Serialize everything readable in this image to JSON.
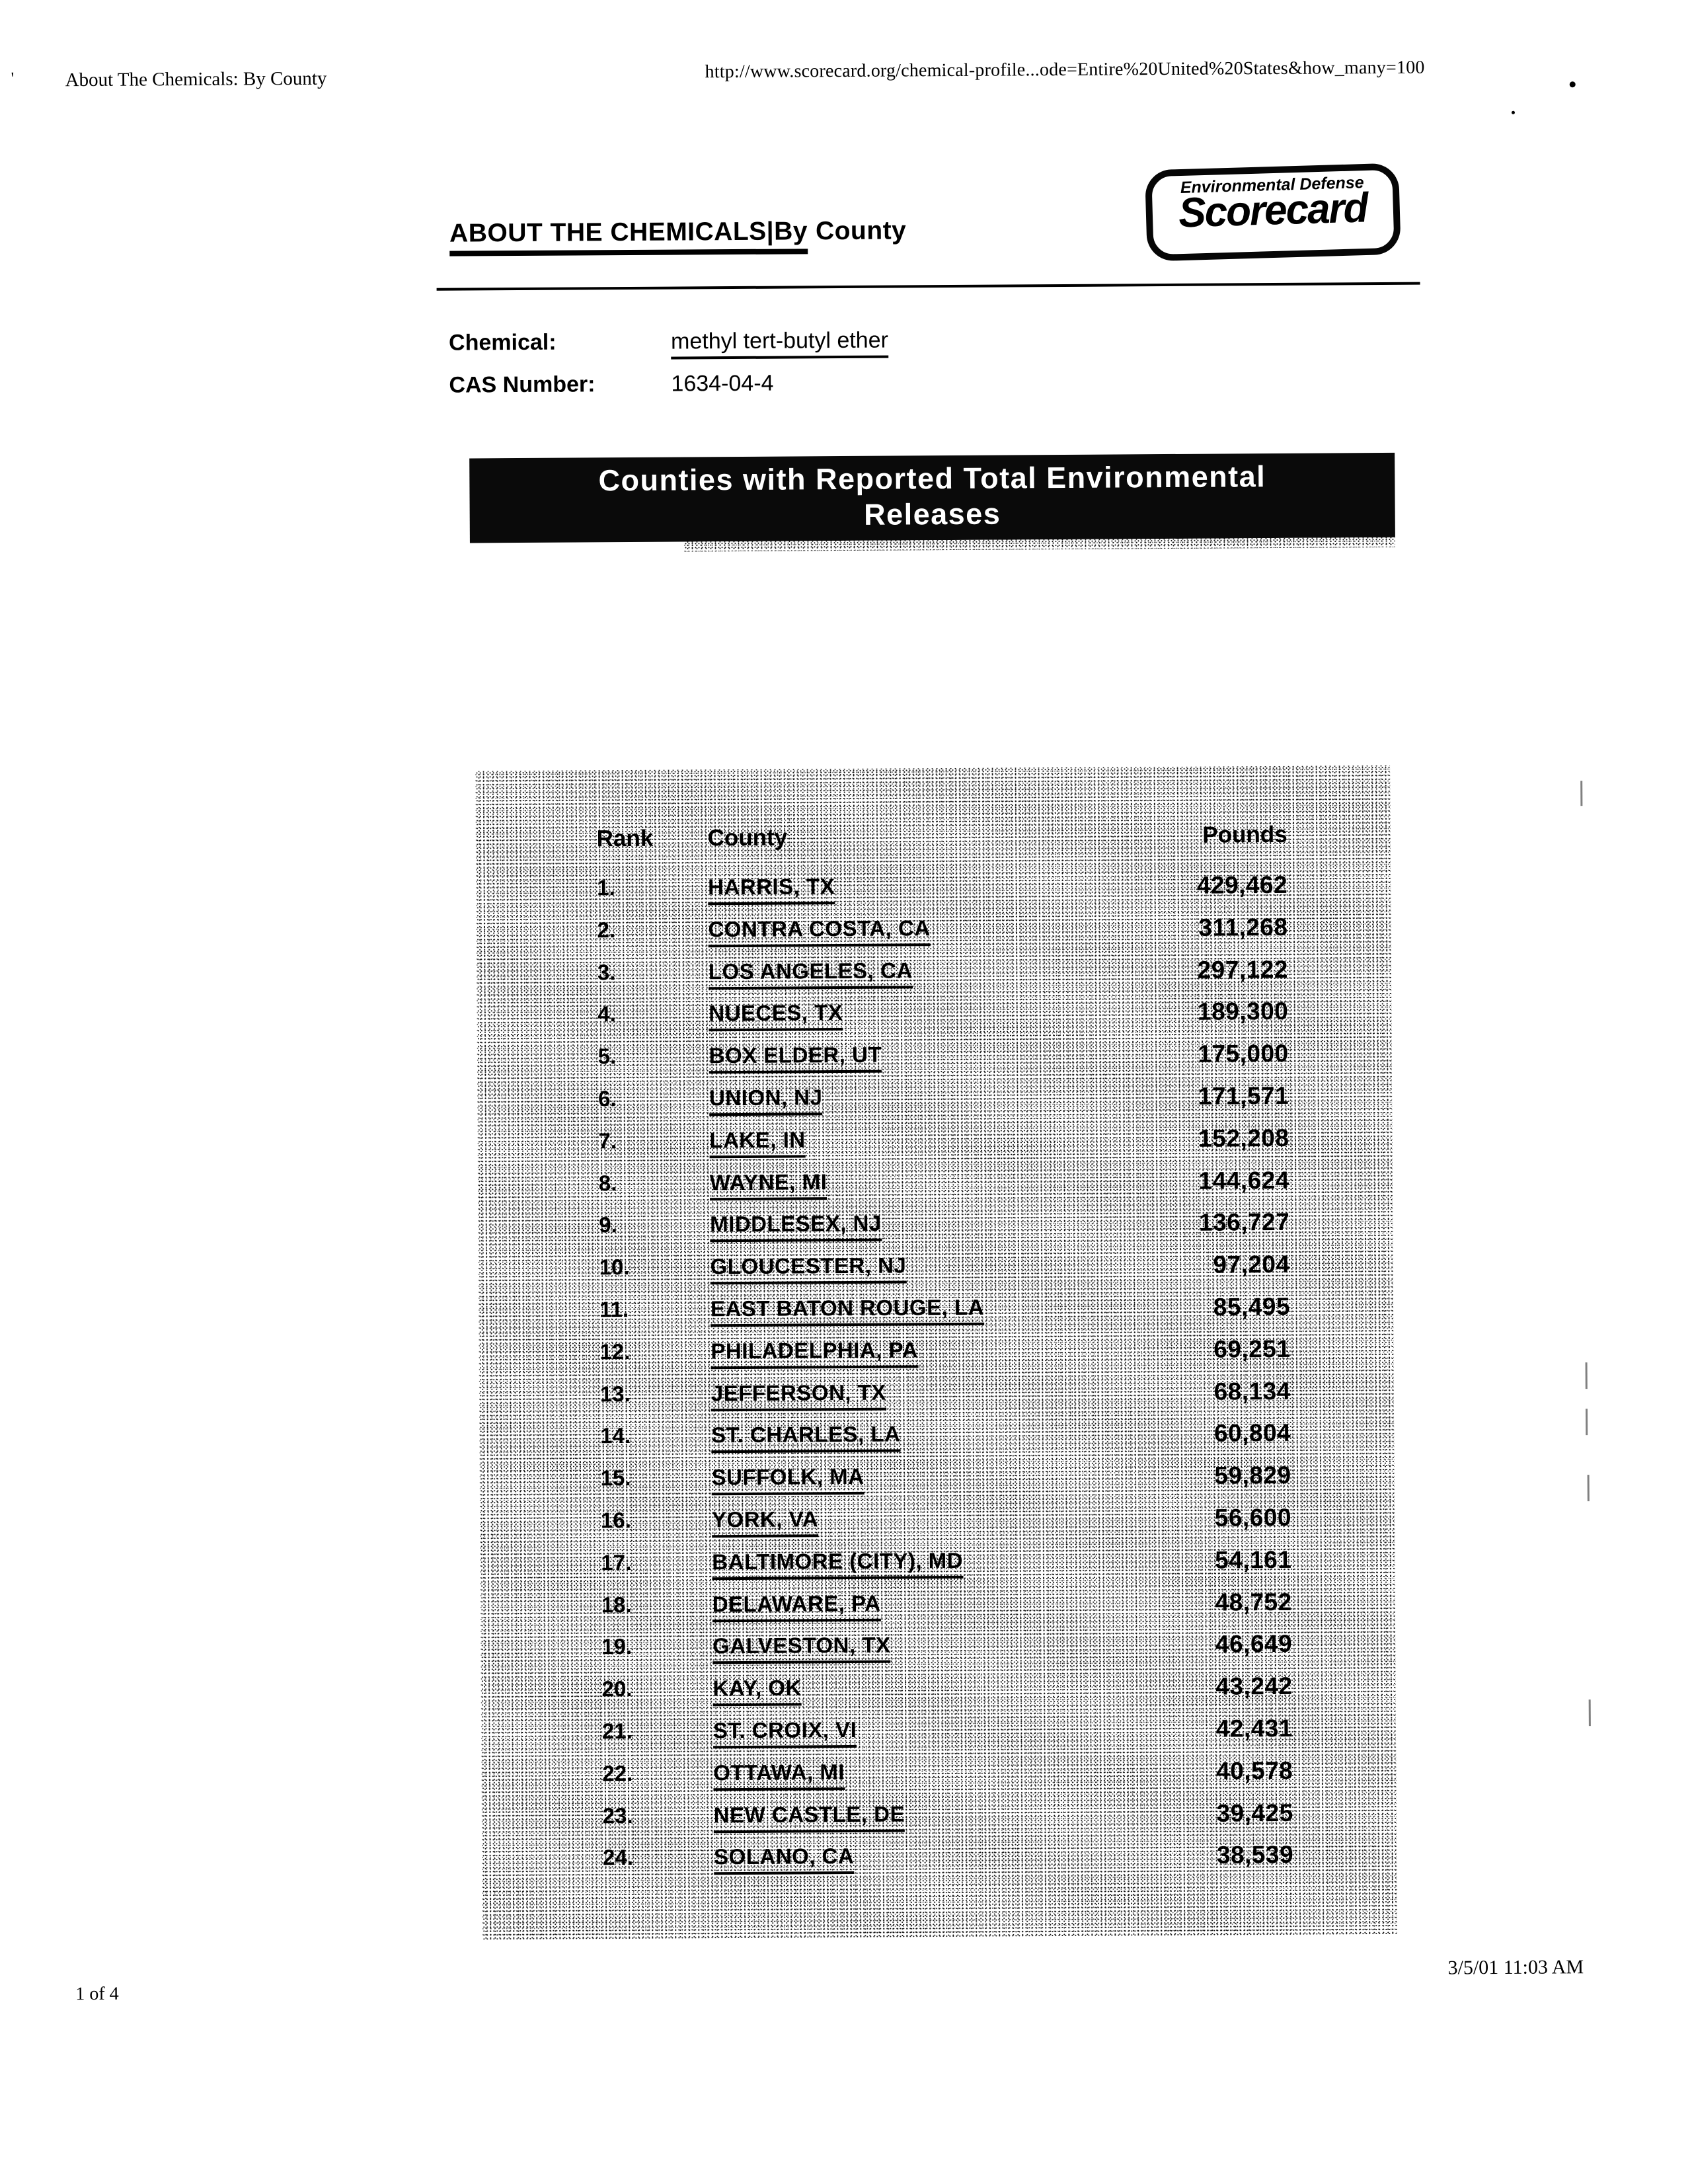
{
  "print_header": {
    "title": "About The Chemicals: By County",
    "url": "http://www.scorecard.org/chemical-profile...ode=Entire%20United%20States&how_many=100"
  },
  "logo": {
    "organization": "Environmental Defense",
    "brand": "Scorecard"
  },
  "page_title": {
    "link_text": "ABOUT THE CHEMICALS|By",
    "suffix": "County"
  },
  "fields": {
    "chemical_label": "Chemical:",
    "chemical_value": "methyl tert-butyl ether",
    "cas_label": "CAS Number:",
    "cas_value": "1634-04-4"
  },
  "banner": {
    "line1": "Counties with Reported Total Environmental",
    "line2": "Releases"
  },
  "table": {
    "headers": {
      "rank": "Rank",
      "county": "County",
      "pounds": "Pounds"
    },
    "rows": [
      {
        "rank": "1.",
        "county": "HARRIS, TX",
        "pounds": "429,462"
      },
      {
        "rank": "2.",
        "county": "CONTRA COSTA, CA",
        "pounds": "311,268"
      },
      {
        "rank": "3.",
        "county": "LOS ANGELES, CA",
        "pounds": "297,122"
      },
      {
        "rank": "4.",
        "county": "NUECES, TX",
        "pounds": "189,300"
      },
      {
        "rank": "5.",
        "county": "BOX ELDER, UT",
        "pounds": "175,000"
      },
      {
        "rank": "6.",
        "county": "UNION, NJ",
        "pounds": "171,571"
      },
      {
        "rank": "7.",
        "county": "LAKE, IN",
        "pounds": "152,208"
      },
      {
        "rank": "8.",
        "county": "WAYNE, MI",
        "pounds": "144,624"
      },
      {
        "rank": "9.",
        "county": "MIDDLESEX, NJ",
        "pounds": "136,727"
      },
      {
        "rank": "10.",
        "county": "GLOUCESTER, NJ",
        "pounds": "97,204"
      },
      {
        "rank": "11.",
        "county": "EAST BATON ROUGE, LA",
        "pounds": "85,495"
      },
      {
        "rank": "12.",
        "county": "PHILADELPHIA, PA",
        "pounds": "69,251"
      },
      {
        "rank": "13.",
        "county": "JEFFERSON, TX",
        "pounds": "68,134"
      },
      {
        "rank": "14.",
        "county": "ST. CHARLES, LA",
        "pounds": "60,804"
      },
      {
        "rank": "15.",
        "county": "SUFFOLK, MA",
        "pounds": "59,829"
      },
      {
        "rank": "16.",
        "county": "YORK, VA",
        "pounds": "56,600"
      },
      {
        "rank": "17.",
        "county": "BALTIMORE (CITY), MD",
        "pounds": "54,161"
      },
      {
        "rank": "18.",
        "county": "DELAWARE, PA",
        "pounds": "48,752"
      },
      {
        "rank": "19.",
        "county": "GALVESTON, TX",
        "pounds": "46,649"
      },
      {
        "rank": "20.",
        "county": "KAY, OK",
        "pounds": "43,242"
      },
      {
        "rank": "21.",
        "county": "ST. CROIX, VI",
        "pounds": "42,431"
      },
      {
        "rank": "22.",
        "county": "OTTAWA, MI",
        "pounds": "40,578"
      },
      {
        "rank": "23.",
        "county": "NEW CASTLE, DE",
        "pounds": "39,425"
      },
      {
        "rank": "24.",
        "county": "SOLANO, CA",
        "pounds": "38,539"
      }
    ]
  },
  "footer": {
    "page_number": "1 of 4",
    "datetime": "3/5/01 11:03 AM"
  }
}
